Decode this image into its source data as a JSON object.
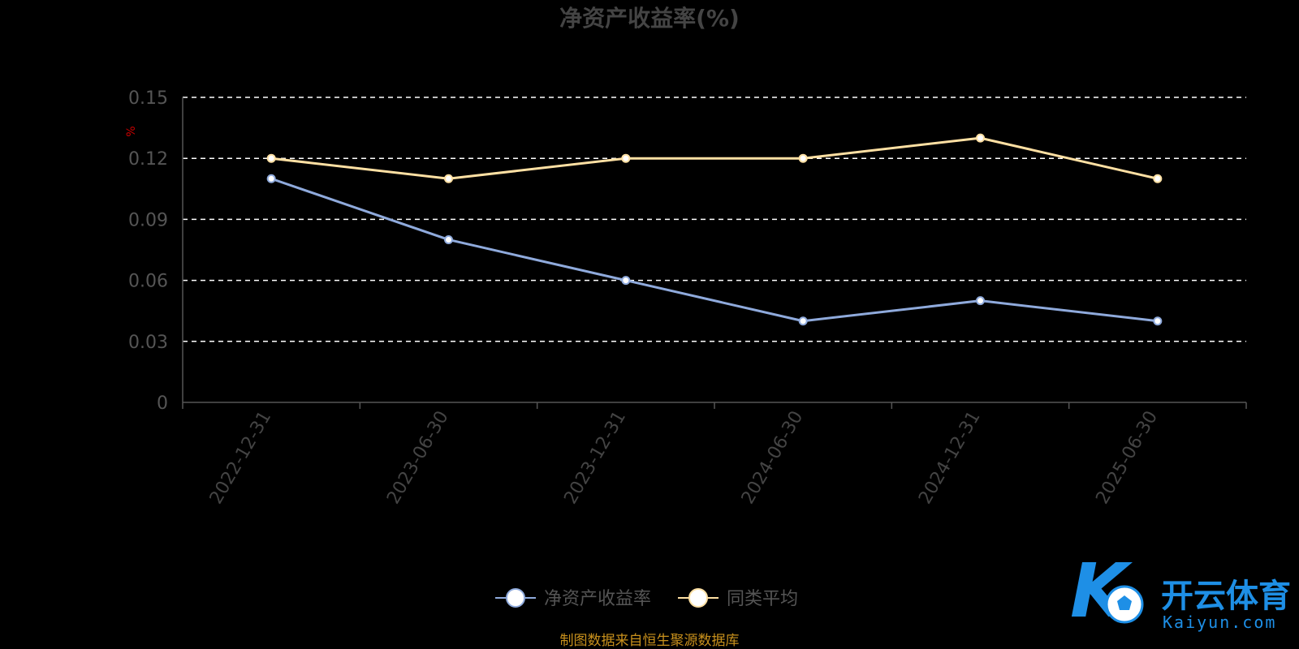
{
  "chart_data": {
    "type": "line",
    "title": "净资产收益率(%)",
    "ylabel": "%",
    "xlabel": "",
    "categories": [
      "2022-12-31",
      "2023-06-30",
      "2023-12-31",
      "2024-06-30",
      "2024-12-31",
      "2025-06-30"
    ],
    "y_ticks": [
      "0",
      "0.03",
      "0.06",
      "0.09",
      "0.12",
      "0.15"
    ],
    "ylim": [
      0,
      0.15
    ],
    "grid": true,
    "legend_position": "bottom",
    "series": [
      {
        "name": "净资产收益率",
        "values": [
          0.11,
          0.08,
          0.06,
          0.04,
          0.05,
          0.04
        ],
        "color": "#8faadc"
      },
      {
        "name": "同类平均",
        "values": [
          0.12,
          0.11,
          0.12,
          0.12,
          0.13,
          0.11
        ],
        "color": "#ffe0a3"
      }
    ]
  },
  "source_note": "制图数据来自恒生聚源数据库",
  "watermark": {
    "brand_cn": "开云体育",
    "brand_en": "Kaiyun.com",
    "logo_icon": "k-football-logo-icon",
    "logo_letter": "K"
  },
  "colors": {
    "background": "#000000",
    "grid": "#ffffff",
    "axis": "#555555",
    "unit": "#cc0000",
    "source": "#c8901c",
    "watermark": "#1e8fe6"
  }
}
